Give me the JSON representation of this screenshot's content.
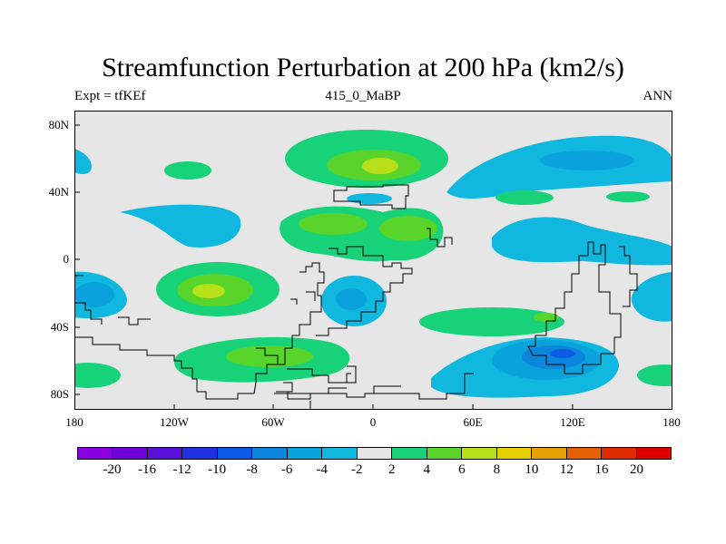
{
  "title": "Streamfunction Perturbation at 200 hPa (km2/s)",
  "left_label": "Expt = tfKEf",
  "center_label": "415_0_MaBP",
  "right_label": "ANN",
  "y_ticks": [
    "80N",
    "40N",
    "0",
    "40S",
    "80S"
  ],
  "x_ticks": [
    "180",
    "120W",
    "60W",
    "0",
    "60E",
    "120E",
    "180"
  ],
  "colorbar": {
    "labels": [
      "-20",
      "-16",
      "-12",
      "-10",
      "-8",
      "-6",
      "-4",
      "-2",
      "2",
      "4",
      "6",
      "8",
      "10",
      "12",
      "16",
      "20"
    ],
    "colors": [
      "#8a00e0",
      "#6f00dc",
      "#5a10d8",
      "#1f30e0",
      "#0a5ae4",
      "#0c86dc",
      "#0aa2dc",
      "#10b8e0",
      "#e6e6e6",
      "#18d27a",
      "#58d42a",
      "#b8e01a",
      "#e6d000",
      "#e4a000",
      "#e46000",
      "#e02a00",
      "#dc0000"
    ]
  },
  "colors": {
    "background": "#e6e6e6",
    "pos2": "#18d27a",
    "pos4": "#58d42a",
    "pos6": "#b8e01a",
    "neg2": "#10b8e0",
    "neg4": "#0aa2dc",
    "neg6": "#0c86dc",
    "neg8": "#0a5ae4"
  }
}
